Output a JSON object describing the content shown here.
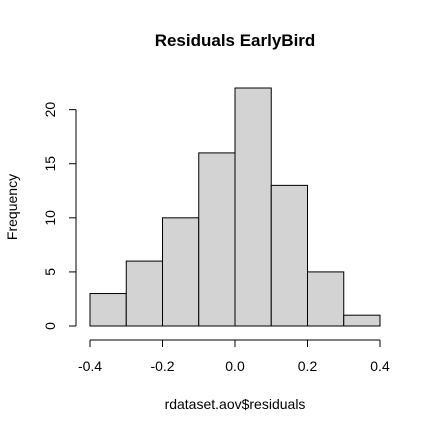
{
  "chart_data": {
    "type": "bar",
    "title": "Residuals  EarlyBird",
    "xlabel": "rdataset.aov$residuals",
    "ylabel": "Frequency",
    "bins": [
      {
        "start": -0.4,
        "end": -0.3,
        "count": 3
      },
      {
        "start": -0.3,
        "end": -0.2,
        "count": 6
      },
      {
        "start": -0.2,
        "end": -0.1,
        "count": 10
      },
      {
        "start": -0.1,
        "end": 0.0,
        "count": 16
      },
      {
        "start": 0.0,
        "end": 0.1,
        "count": 22
      },
      {
        "start": 0.1,
        "end": 0.2,
        "count": 13
      },
      {
        "start": 0.2,
        "end": 0.3,
        "count": 5
      },
      {
        "start": 0.3,
        "end": 0.4,
        "count": 1
      }
    ],
    "xlim": [
      -0.4,
      0.4
    ],
    "ylim": [
      0,
      22
    ],
    "x_ticks": [
      -0.4,
      -0.2,
      0.0,
      0.2,
      0.4
    ],
    "x_tick_labels": [
      "-0.4",
      "-0.2",
      "0.0",
      "0.2",
      "0.4"
    ],
    "y_ticks": [
      0,
      5,
      10,
      15,
      20
    ],
    "y_tick_labels": [
      "0",
      "5",
      "10",
      "15",
      "20"
    ],
    "bar_fill": "#d3d3d3",
    "bar_stroke": "#000000",
    "grid": false,
    "legend": "none"
  }
}
